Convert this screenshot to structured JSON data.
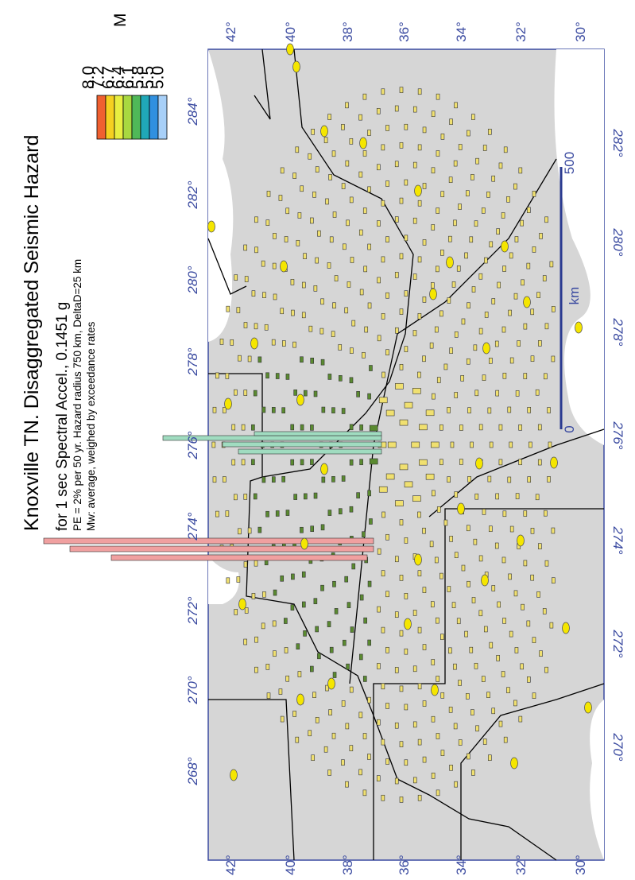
{
  "title": {
    "line1": "Knoxville TN. Disaggregated Seismic Hazard",
    "line2": "for 1 sec Spectral Accel., 0.1451 g",
    "line3": "PE = 2% per 50 yr. Hazard radius 750 km, DeltaD=25 km",
    "line4": "Mw: average, weighed by exceedance rates"
  },
  "legend": {
    "labels": [
      "8.0",
      "7.2",
      "6.7",
      "6.4",
      "6.1",
      "5.8",
      "5.5",
      "5.0"
    ],
    "unit": "M"
  },
  "axes": {
    "lat_top": [
      "42°",
      "40°",
      "38°",
      "36°",
      "34°",
      "32°",
      "30°"
    ],
    "lat_bottom": [
      "42°",
      "40°",
      "38°",
      "36°",
      "34°",
      "32°",
      "30°"
    ],
    "lon_left": [
      "284°",
      "282°",
      "280°",
      "278°",
      "276°",
      "274°",
      "272°",
      "270°",
      "268°"
    ],
    "lon_right": [
      "282°",
      "280°",
      "278°",
      "276°",
      "274°",
      "272°",
      "270°"
    ]
  },
  "scale": {
    "max": "500",
    "min": "0",
    "unit": "km"
  }
}
